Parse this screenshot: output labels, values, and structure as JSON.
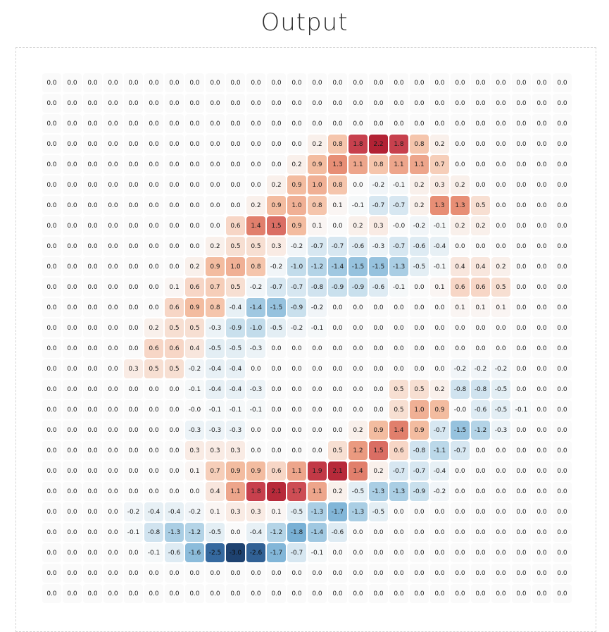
{
  "title": "Output",
  "chart_data": {
    "type": "heatmap",
    "title": "Output",
    "rows": 26,
    "cols": 26,
    "colormap": "RdBu_r (diverging: negative=blue, positive=red)",
    "value_range": [
      -3.0,
      2.2
    ],
    "values": [
      [
        0.0,
        0.0,
        0.0,
        0.0,
        0.0,
        0.0,
        0.0,
        0.0,
        0.0,
        0.0,
        0.0,
        0.0,
        0.0,
        0.0,
        0.0,
        0.0,
        0.0,
        0.0,
        0.0,
        0.0,
        0.0,
        0.0,
        0.0,
        0.0,
        0.0,
        0.0
      ],
      [
        0.0,
        0.0,
        0.0,
        0.0,
        0.0,
        0.0,
        0.0,
        0.0,
        0.0,
        0.0,
        0.0,
        0.0,
        0.0,
        0.0,
        0.0,
        0.0,
        0.0,
        0.0,
        0.0,
        0.0,
        0.0,
        0.0,
        0.0,
        0.0,
        0.0,
        0.0
      ],
      [
        0.0,
        0.0,
        0.0,
        0.0,
        0.0,
        0.0,
        0.0,
        0.0,
        0.0,
        0.0,
        0.0,
        0.0,
        0.0,
        0.0,
        0.0,
        0.0,
        0.0,
        0.0,
        0.0,
        0.0,
        0.0,
        0.0,
        0.0,
        0.0,
        0.0,
        0.0
      ],
      [
        0.0,
        0.0,
        0.0,
        0.0,
        0.0,
        0.0,
        0.0,
        0.0,
        0.0,
        0.0,
        0.0,
        0.0,
        0.0,
        0.2,
        0.8,
        1.8,
        2.2,
        1.8,
        0.8,
        0.2,
        0.0,
        0.0,
        0.0,
        0.0,
        0.0,
        0.0
      ],
      [
        0.0,
        0.0,
        0.0,
        0.0,
        0.0,
        0.0,
        0.0,
        0.0,
        0.0,
        0.0,
        0.0,
        0.0,
        0.2,
        0.9,
        1.3,
        1.1,
        0.8,
        1.1,
        1.1,
        0.7,
        0.0,
        0.0,
        0.0,
        0.0,
        0.0,
        0.0
      ],
      [
        0.0,
        0.0,
        0.0,
        0.0,
        0.0,
        0.0,
        0.0,
        0.0,
        0.0,
        0.0,
        0.0,
        0.2,
        0.9,
        1.0,
        0.8,
        0.0,
        -0.2,
        -0.1,
        0.2,
        0.3,
        0.2,
        0.0,
        0.0,
        0.0,
        0.0,
        0.0
      ],
      [
        0.0,
        0.0,
        0.0,
        0.0,
        0.0,
        0.0,
        0.0,
        0.0,
        0.0,
        0.0,
        0.2,
        0.9,
        1.0,
        0.8,
        0.1,
        -0.1,
        -0.7,
        -0.7,
        0.2,
        1.3,
        1.3,
        0.5,
        0.0,
        0.0,
        0.0,
        0.0
      ],
      [
        0.0,
        0.0,
        0.0,
        0.0,
        0.0,
        0.0,
        0.0,
        0.0,
        0.0,
        0.6,
        1.4,
        1.5,
        0.9,
        0.1,
        0.0,
        0.2,
        0.3,
        -0.0,
        -0.2,
        -0.1,
        0.2,
        0.2,
        0.0,
        0.0,
        0.0,
        0.0
      ],
      [
        0.0,
        0.0,
        0.0,
        0.0,
        0.0,
        0.0,
        0.0,
        0.0,
        0.2,
        0.5,
        0.5,
        0.3,
        -0.2,
        -0.7,
        -0.7,
        -0.6,
        -0.3,
        -0.7,
        -0.6,
        -0.4,
        0.0,
        0.0,
        0.0,
        0.0,
        0.0,
        0.0
      ],
      [
        0.0,
        0.0,
        0.0,
        0.0,
        0.0,
        0.0,
        0.0,
        0.2,
        0.9,
        1.0,
        0.8,
        -0.2,
        -1.0,
        -1.2,
        -1.4,
        -1.5,
        -1.5,
        -1.3,
        -0.5,
        -0.1,
        0.4,
        0.4,
        0.2,
        0.0,
        0.0,
        0.0
      ],
      [
        0.0,
        0.0,
        0.0,
        0.0,
        0.0,
        0.0,
        0.1,
        0.6,
        0.7,
        0.5,
        -0.2,
        -0.7,
        -0.7,
        -0.8,
        -0.9,
        -0.9,
        -0.6,
        -0.1,
        0.0,
        0.1,
        0.6,
        0.6,
        0.5,
        0.0,
        0.0,
        0.0
      ],
      [
        0.0,
        0.0,
        0.0,
        0.0,
        0.0,
        0.0,
        0.6,
        0.9,
        0.8,
        -0.4,
        -1.4,
        -1.5,
        -0.9,
        -0.2,
        0.0,
        0.0,
        0.0,
        0.0,
        0.0,
        0.0,
        0.1,
        0.1,
        0.1,
        0.0,
        0.0,
        0.0
      ],
      [
        0.0,
        0.0,
        0.0,
        0.0,
        0.0,
        0.2,
        0.5,
        0.5,
        -0.3,
        -0.9,
        -1.0,
        -0.5,
        -0.2,
        -0.1,
        0.0,
        0.0,
        0.0,
        0.0,
        0.0,
        0.0,
        0.0,
        0.0,
        0.0,
        0.0,
        0.0,
        0.0
      ],
      [
        0.0,
        0.0,
        0.0,
        0.0,
        0.0,
        0.6,
        0.6,
        0.4,
        -0.5,
        -0.5,
        -0.3,
        0.0,
        0.0,
        0.0,
        0.0,
        0.0,
        0.0,
        0.0,
        0.0,
        0.0,
        0.0,
        0.0,
        0.0,
        0.0,
        0.0,
        0.0
      ],
      [
        0.0,
        0.0,
        0.0,
        0.0,
        0.3,
        0.5,
        0.5,
        -0.2,
        -0.4,
        -0.4,
        0.0,
        0.0,
        0.0,
        0.0,
        0.0,
        0.0,
        0.0,
        0.0,
        0.0,
        0.0,
        -0.2,
        -0.2,
        -0.2,
        0.0,
        0.0,
        0.0
      ],
      [
        0.0,
        0.0,
        0.0,
        0.0,
        0.0,
        0.0,
        0.0,
        -0.1,
        -0.4,
        -0.4,
        -0.3,
        0.0,
        0.0,
        0.0,
        0.0,
        0.0,
        0.0,
        0.5,
        0.5,
        0.2,
        -0.8,
        -0.8,
        -0.5,
        0.0,
        0.0,
        0.0
      ],
      [
        0.0,
        0.0,
        0.0,
        0.0,
        0.0,
        0.0,
        0.0,
        -0.0,
        -0.1,
        -0.1,
        -0.1,
        0.0,
        0.0,
        0.0,
        0.0,
        0.0,
        0.0,
        0.5,
        1.0,
        0.9,
        -0.0,
        -0.6,
        -0.5,
        -0.1,
        0.0,
        0.0
      ],
      [
        0.0,
        0.0,
        0.0,
        0.0,
        0.0,
        0.0,
        0.0,
        -0.3,
        -0.3,
        -0.3,
        0.0,
        0.0,
        0.0,
        0.0,
        0.0,
        0.2,
        0.9,
        1.4,
        0.9,
        -0.7,
        -1.5,
        -1.2,
        -0.3,
        0.0,
        0.0,
        0.0
      ],
      [
        0.0,
        0.0,
        0.0,
        0.0,
        0.0,
        0.0,
        0.0,
        0.3,
        0.3,
        0.3,
        0.0,
        0.0,
        0.0,
        0.0,
        0.5,
        1.2,
        1.5,
        0.6,
        -0.8,
        -1.1,
        -0.7,
        0.0,
        0.0,
        0.0,
        0.0,
        0.0
      ],
      [
        0.0,
        0.0,
        0.0,
        0.0,
        0.0,
        0.0,
        0.0,
        0.1,
        0.7,
        0.9,
        0.9,
        0.6,
        1.1,
        1.9,
        2.1,
        1.4,
        0.2,
        -0.7,
        -0.7,
        -0.4,
        0.0,
        0.0,
        0.0,
        0.0,
        0.0,
        0.0
      ],
      [
        0.0,
        0.0,
        0.0,
        0.0,
        0.0,
        0.0,
        0.0,
        0.0,
        0.4,
        1.1,
        1.8,
        2.1,
        1.7,
        1.1,
        0.2,
        -0.5,
        -1.3,
        -1.3,
        -0.9,
        -0.2,
        0.0,
        0.0,
        0.0,
        0.0,
        0.0,
        0.0
      ],
      [
        0.0,
        0.0,
        0.0,
        0.0,
        -0.2,
        -0.4,
        -0.4,
        -0.2,
        0.1,
        0.3,
        0.3,
        0.1,
        -0.5,
        -1.3,
        -1.7,
        -1.3,
        -0.5,
        0.0,
        0.0,
        0.0,
        0.0,
        0.0,
        0.0,
        0.0,
        0.0,
        0.0
      ],
      [
        0.0,
        0.0,
        0.0,
        0.0,
        -0.1,
        -0.8,
        -1.3,
        -1.2,
        -0.5,
        0.0,
        -0.4,
        -1.2,
        -1.8,
        -1.4,
        -0.6,
        0.0,
        0.0,
        0.0,
        0.0,
        0.0,
        0.0,
        0.0,
        0.0,
        0.0,
        0.0,
        0.0
      ],
      [
        0.0,
        0.0,
        0.0,
        0.0,
        0.0,
        -0.1,
        -0.6,
        -1.6,
        -2.5,
        -3.0,
        -2.6,
        -1.7,
        -0.7,
        -0.1,
        0.0,
        0.0,
        0.0,
        0.0,
        0.0,
        0.0,
        0.0,
        0.0,
        0.0,
        0.0,
        0.0,
        0.0
      ],
      [
        0.0,
        0.0,
        0.0,
        0.0,
        0.0,
        0.0,
        0.0,
        0.0,
        0.0,
        0.0,
        0.0,
        0.0,
        0.0,
        0.0,
        0.0,
        0.0,
        0.0,
        0.0,
        0.0,
        0.0,
        0.0,
        0.0,
        0.0,
        0.0,
        0.0,
        0.0
      ],
      [
        0.0,
        0.0,
        0.0,
        0.0,
        0.0,
        0.0,
        0.0,
        0.0,
        0.0,
        0.0,
        0.0,
        0.0,
        0.0,
        0.0,
        0.0,
        0.0,
        0.0,
        0.0,
        0.0,
        0.0,
        0.0,
        0.0,
        0.0,
        0.0,
        0.0,
        0.0
      ]
    ],
    "negative_zero_cells": [
      [
        7,
        17
      ],
      [
        16,
        7
      ],
      [
        16,
        20
      ]
    ],
    "xlabel": "",
    "ylabel": "",
    "grid": false,
    "legend": "none",
    "colors": {
      "neutral": "#fafafa",
      "max_positive": "#c9434f",
      "max_negative": "#1f4572"
    }
  }
}
